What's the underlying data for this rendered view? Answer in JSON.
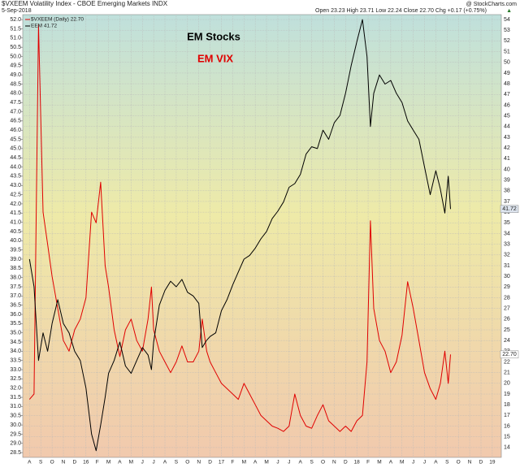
{
  "chart_data": {
    "type": "line",
    "title": "$VXEEM Volatility Index - CBOE Emerging Markets INDX",
    "date": "5-Sep-2018",
    "quote": "Open 23.23  High 23.71  Low 22.24  Close 22.70  Chg +0.17 (+0.75%)",
    "credit": "@ StockCharts.com",
    "annotations": [
      {
        "text": "EM Stocks",
        "color": "#000000"
      },
      {
        "text": "EM VIX",
        "color": "#e00000"
      }
    ],
    "grid": true,
    "xlim": [
      -0.6,
      41.8
    ],
    "xticks": [
      {
        "value": 0,
        "label": "A"
      },
      {
        "value": 1,
        "label": "S"
      },
      {
        "value": 2,
        "label": "O"
      },
      {
        "value": 3,
        "label": "N"
      },
      {
        "value": 4,
        "label": "D"
      },
      {
        "value": 5,
        "label": "16"
      },
      {
        "value": 6,
        "label": "F"
      },
      {
        "value": 7,
        "label": "M"
      },
      {
        "value": 8,
        "label": "A"
      },
      {
        "value": 9,
        "label": "M"
      },
      {
        "value": 10,
        "label": "J"
      },
      {
        "value": 11,
        "label": "J"
      },
      {
        "value": 12,
        "label": "A"
      },
      {
        "value": 13,
        "label": "S"
      },
      {
        "value": 14,
        "label": "O"
      },
      {
        "value": 15,
        "label": "N"
      },
      {
        "value": 16,
        "label": "D"
      },
      {
        "value": 17,
        "label": "17"
      },
      {
        "value": 18,
        "label": "F"
      },
      {
        "value": 19,
        "label": "M"
      },
      {
        "value": 20,
        "label": "A"
      },
      {
        "value": 21,
        "label": "M"
      },
      {
        "value": 22,
        "label": "J"
      },
      {
        "value": 23,
        "label": "J"
      },
      {
        "value": 24,
        "label": "A"
      },
      {
        "value": 25,
        "label": "S"
      },
      {
        "value": 26,
        "label": "O"
      },
      {
        "value": 27,
        "label": "N"
      },
      {
        "value": 28,
        "label": "D"
      },
      {
        "value": 29,
        "label": "18"
      },
      {
        "value": 30,
        "label": "F"
      },
      {
        "value": 31,
        "label": "M"
      },
      {
        "value": 32,
        "label": "A"
      },
      {
        "value": 33,
        "label": "M"
      },
      {
        "value": 34,
        "label": "J"
      },
      {
        "value": 35,
        "label": "J"
      },
      {
        "value": 36,
        "label": "A"
      },
      {
        "value": 37,
        "label": "S"
      },
      {
        "value": 38,
        "label": "O"
      },
      {
        "value": 39,
        "label": "N"
      },
      {
        "value": 40,
        "label": "D"
      },
      {
        "value": 41,
        "label": "19"
      }
    ],
    "ylim": [
      28.24,
      52.27
    ],
    "yticks": [
      28.5,
      {
        "value": 29,
        "label": "29.0"
      },
      29.5,
      {
        "value": 30,
        "label": "30.0"
      },
      30.5,
      {
        "value": 31,
        "label": "31.0"
      },
      31.5,
      {
        "value": 32,
        "label": "32.0"
      },
      32.5,
      {
        "value": 33,
        "label": "33.0"
      },
      33.5,
      {
        "value": 34,
        "label": "34.0"
      },
      34.5,
      {
        "value": 35,
        "label": "35.0"
      },
      35.5,
      {
        "value": 36,
        "label": "36.0"
      },
      36.5,
      {
        "value": 37,
        "label": "37.0"
      },
      37.5,
      {
        "value": 38,
        "label": "38.0"
      },
      38.5,
      {
        "value": 39,
        "label": "39.0"
      },
      39.5,
      {
        "value": 40,
        "label": "40.0"
      },
      40.5,
      {
        "value": 41,
        "label": "41.0"
      },
      41.5,
      {
        "value": 42,
        "label": "42.0"
      },
      42.5,
      {
        "value": 43,
        "label": "43.0"
      },
      43.5,
      {
        "value": 44,
        "label": "44.0"
      },
      44.5,
      {
        "value": 45,
        "label": "45.0"
      },
      45.5,
      {
        "value": 46,
        "label": "46.0"
      },
      46.5,
      {
        "value": 47,
        "label": "47.0"
      },
      47.5,
      {
        "value": 48,
        "label": "48.0"
      },
      48.5,
      {
        "value": 49,
        "label": "49.0"
      },
      49.5,
      {
        "value": 50,
        "label": "50.0"
      },
      50.5,
      {
        "value": 51,
        "label": "51.0"
      },
      51.5,
      {
        "value": 52,
        "label": "52.0"
      }
    ],
    "y2lim": [
      13.08,
      54.46
    ],
    "y2ticks": [
      14,
      15,
      16,
      17,
      18,
      19,
      20,
      21,
      22,
      23,
      24,
      25,
      26,
      27,
      28,
      29,
      30,
      31,
      32,
      33,
      34,
      35,
      36,
      37,
      38,
      39,
      40,
      41,
      42,
      43,
      44,
      45,
      46,
      47,
      48,
      49,
      50,
      51,
      52,
      53,
      54
    ],
    "x": [
      0,
      0.4,
      0.8,
      1.2,
      1.6,
      2,
      2.5,
      3,
      3.5,
      4,
      4.5,
      5,
      5.5,
      5.9,
      6.3,
      6.7,
      7,
      7.5,
      8,
      8.5,
      9,
      9.5,
      10,
      10.5,
      10.8,
      11,
      11.5,
      12,
      12.5,
      13,
      13.5,
      14,
      14.5,
      15,
      15.3,
      15.7,
      16,
      16.5,
      17,
      17.5,
      18,
      18.5,
      19,
      19.5,
      20,
      20.5,
      21,
      21.5,
      22,
      22.5,
      23,
      23.5,
      24,
      24.5,
      25,
      25.5,
      26,
      26.5,
      27,
      27.5,
      28,
      28.5,
      29,
      29.5,
      29.9,
      30.2,
      30.5,
      31,
      31.5,
      32,
      32.5,
      33,
      33.5,
      34,
      34.5,
      35,
      35.5,
      36,
      36.4,
      36.8,
      37.1,
      37.3
    ],
    "series": [
      {
        "name": "$VXEEM (Daily) 22.70",
        "color": "#e00000",
        "axis": "y2",
        "last_value_label": "22.70",
        "values": [
          18.5,
          19,
          53.5,
          36,
          33,
          30,
          27,
          24,
          23,
          25,
          26,
          28,
          36,
          35,
          38.8,
          31,
          29,
          25,
          22.5,
          25,
          26,
          24,
          23,
          26,
          29,
          25,
          23,
          22,
          21,
          22,
          23.5,
          22,
          22,
          23,
          26,
          23,
          22,
          21,
          20,
          19.5,
          19,
          18.5,
          20,
          19,
          18,
          17,
          16.5,
          16,
          15.8,
          15.5,
          16,
          19,
          17,
          16,
          15.8,
          17,
          18,
          16.5,
          16,
          15.5,
          16,
          15.5,
          16.5,
          17,
          22,
          35.2,
          27,
          24,
          23,
          21,
          22,
          24.5,
          29.5,
          27,
          24,
          21,
          19.5,
          18.5,
          20,
          23,
          20,
          22.7
        ]
      },
      {
        "name": "EEM 41.72",
        "color": "#000000",
        "axis": "y",
        "last_value_label": "41.72",
        "values": [
          39.0,
          37.5,
          33.5,
          35.0,
          34.0,
          35.5,
          36.8,
          35.5,
          35.0,
          34.0,
          33.5,
          32.0,
          29.5,
          28.6,
          30.0,
          31.5,
          32.8,
          33.5,
          34.5,
          33.2,
          32.8,
          33.5,
          34.2,
          33.8,
          33.0,
          34.5,
          36.5,
          37.3,
          37.8,
          37.5,
          37.9,
          37.2,
          37.0,
          36.6,
          34.2,
          34.6,
          34.8,
          35.0,
          36.2,
          36.8,
          37.6,
          38.3,
          39.0,
          39.2,
          39.6,
          40.1,
          40.5,
          41.2,
          41.6,
          42.1,
          42.9,
          43.1,
          43.6,
          44.7,
          45.1,
          45.0,
          46.0,
          45.5,
          46.4,
          46.8,
          48.0,
          49.5,
          50.8,
          52.0,
          50.0,
          46.2,
          48.0,
          49.0,
          48.5,
          48.7,
          48.0,
          47.5,
          46.5,
          46.0,
          45.5,
          44.0,
          42.5,
          43.8,
          42.8,
          41.5,
          43.5,
          41.72
        ]
      }
    ]
  }
}
